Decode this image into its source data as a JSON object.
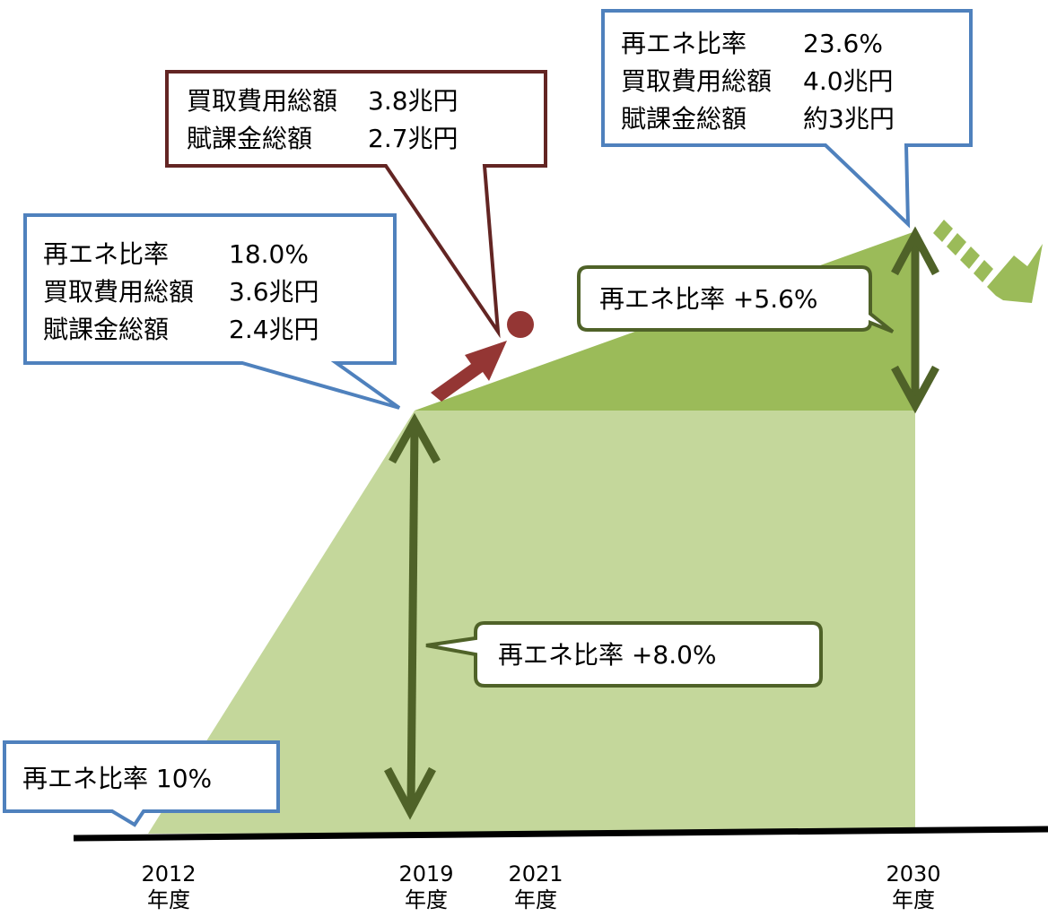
{
  "start_callout": {
    "label": "再エネ比率",
    "value": "10%"
  },
  "callout_2019": [
    {
      "label": "再エネ比率",
      "value": "18.0%"
    },
    {
      "label": "買取費用総額",
      "value": "3.6兆円"
    },
    {
      "label": "賦課金総額",
      "value": "2.4兆円"
    }
  ],
  "callout_2021": [
    {
      "label": "買取費用総額",
      "value": "3.8兆円"
    },
    {
      "label": "賦課金総額",
      "value": "2.7兆円"
    }
  ],
  "callout_2030": [
    {
      "label": "再エネ比率",
      "value": "23.6%"
    },
    {
      "label": "買取費用総額",
      "value": "4.0兆円"
    },
    {
      "label": "賦課金総額",
      "value": "約3兆円"
    }
  ],
  "increase_2019": {
    "label": "再エネ比率",
    "value": "+8.0%"
  },
  "increase_2030": {
    "label": "再エネ比率",
    "value": "+5.6%"
  },
  "x_labels": [
    {
      "year": "2012",
      "unit": "年度"
    },
    {
      "year": "2019",
      "unit": "年度"
    },
    {
      "year": "2021",
      "unit": "年度"
    },
    {
      "year": "2030",
      "unit": "年度"
    }
  ]
}
